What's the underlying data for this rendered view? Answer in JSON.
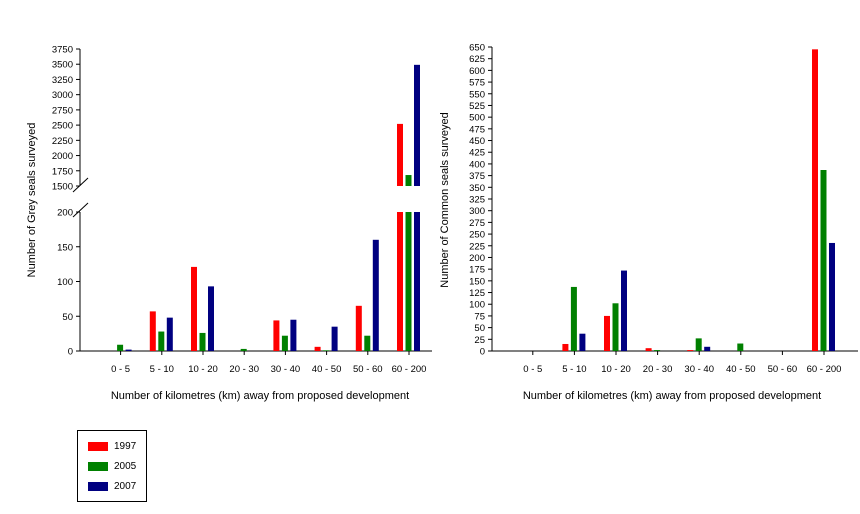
{
  "colors": {
    "1997": "#ff0000",
    "2005": "#008000",
    "2007": "#000080"
  },
  "legend": [
    {
      "label": "1997",
      "color": "#ff0000"
    },
    {
      "label": "2005",
      "color": "#008000"
    },
    {
      "label": "2007",
      "color": "#000080"
    }
  ],
  "chart_data": [
    {
      "type": "bar",
      "title": "",
      "xlabel": "Number of kilometres (km) away from proposed development",
      "ylabel": "Number of Grey seals surveyed",
      "categories": [
        "0 - 5",
        "5 - 10",
        "10 - 20",
        "20 - 30",
        "30 - 40",
        "40 - 50",
        "50 - 60",
        "60 - 200"
      ],
      "series": [
        {
          "name": "1997",
          "values": [
            0,
            57,
            121,
            0,
            44,
            6,
            65,
            2520
          ]
        },
        {
          "name": "2005",
          "values": [
            9,
            28,
            26,
            3,
            22,
            1,
            22,
            1680
          ]
        },
        {
          "name": "2007",
          "values": [
            2,
            48,
            93,
            0,
            45,
            35,
            160,
            3490
          ]
        }
      ],
      "y_axis_break": {
        "lower_range": [
          0,
          200
        ],
        "upper_range": [
          1500,
          3750
        ]
      },
      "lower_ticks": [
        "0",
        "50",
        "100",
        "150",
        "200"
      ],
      "upper_ticks": [
        "1500",
        "1750",
        "2000",
        "2250",
        "2500",
        "2750",
        "3000",
        "3250",
        "3500",
        "3750"
      ],
      "grid": false
    },
    {
      "type": "bar",
      "title": "",
      "xlabel": "Number of kilometres (km) away from proposed development",
      "ylabel": "Number of Common seals surveyed",
      "categories": [
        "0 - 5",
        "5 - 10",
        "10 - 20",
        "20 - 30",
        "30 - 40",
        "40 - 50",
        "50 - 60",
        "60 - 200"
      ],
      "series": [
        {
          "name": "1997",
          "values": [
            0,
            15,
            75,
            6,
            2,
            0,
            0,
            645
          ]
        },
        {
          "name": "2005",
          "values": [
            0,
            137,
            102,
            2,
            27,
            16,
            0,
            387
          ]
        },
        {
          "name": "2007",
          "values": [
            0,
            37,
            172,
            0,
            9,
            0,
            0,
            231
          ]
        }
      ],
      "ylim": [
        0,
        650
      ],
      "ticks": [
        "0",
        "25",
        "50",
        "75",
        "100",
        "125",
        "150",
        "175",
        "200",
        "225",
        "250",
        "275",
        "300",
        "325",
        "350",
        "375",
        "400",
        "425",
        "450",
        "475",
        "500",
        "525",
        "550",
        "575",
        "600",
        "625",
        "650"
      ],
      "grid": false
    }
  ]
}
